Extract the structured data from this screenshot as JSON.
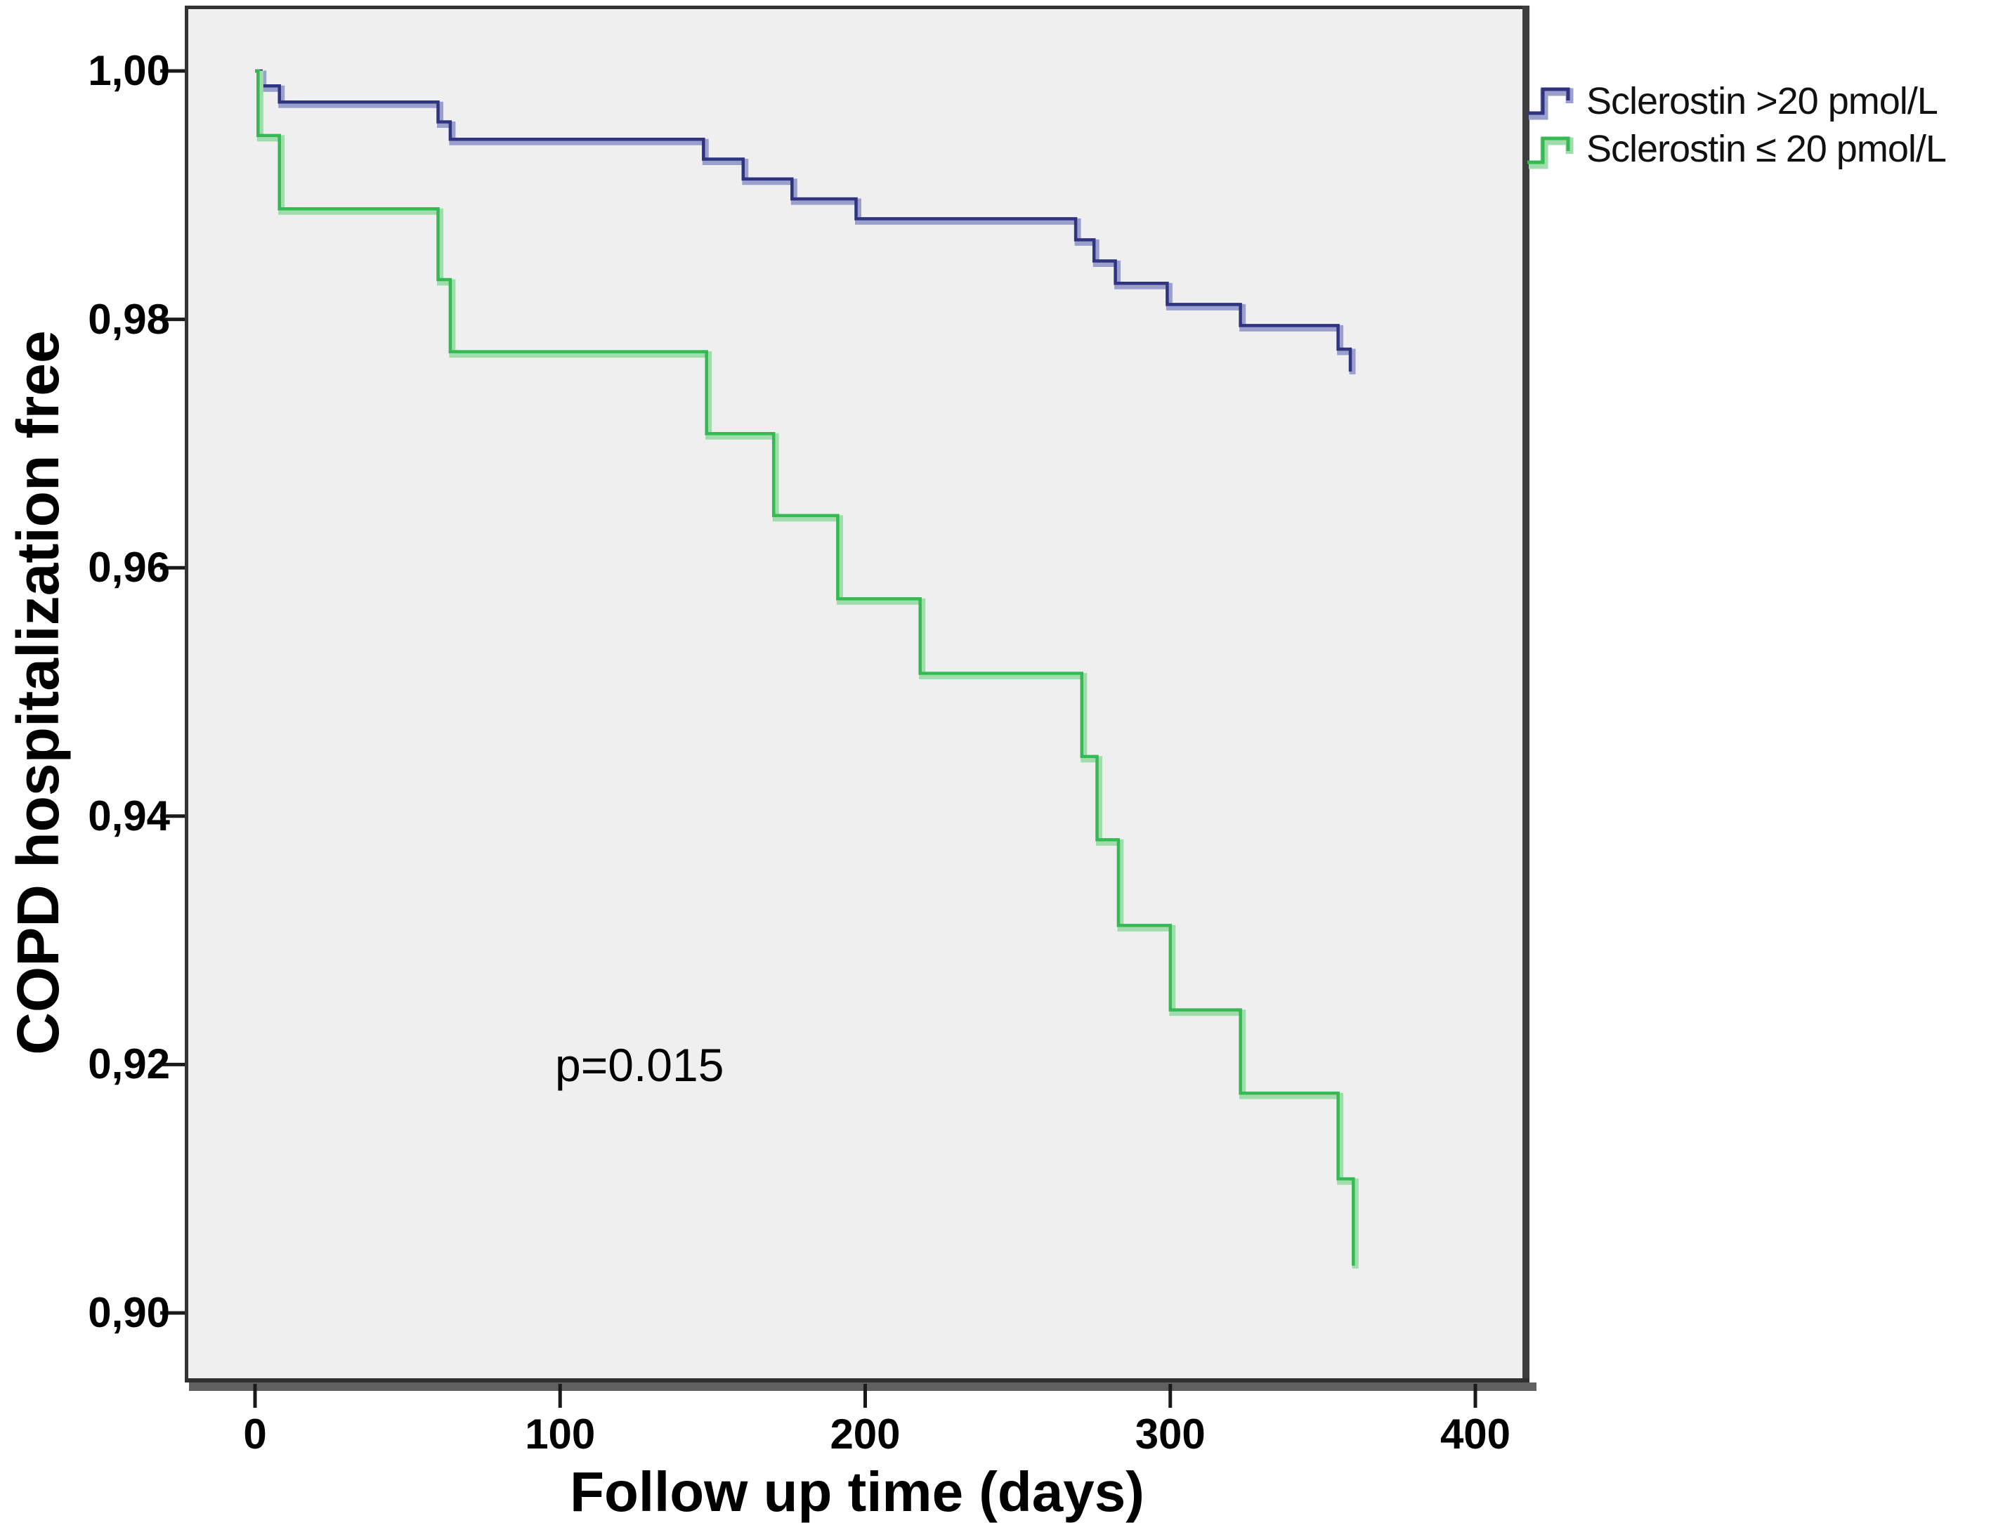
{
  "figure": {
    "p_value_label": "p=0.015",
    "x_axis": {
      "title": "Follow up time (days)",
      "ticks": [
        "0",
        "100",
        "200",
        "300",
        "400"
      ]
    },
    "y_axis": {
      "title": "COPD hospitalization free",
      "ticks": [
        "1,00",
        "0,98",
        "0,96",
        "0,94",
        "0,92",
        "0,90"
      ]
    },
    "legend": {
      "items": [
        {
          "label": "Sclerostin >20 pmol/L",
          "color": "#2f3480",
          "halo": "#9aa0cb"
        },
        {
          "label": "Sclerostin ≤ 20 pmol/L",
          "color": "#35b952",
          "halo": "#a0dcac"
        }
      ]
    },
    "colors": {
      "plot_background": "#efefef",
      "frame_dark": "#333333",
      "frame_shadow": "#606060",
      "tick_color": "#1a1a1a"
    }
  },
  "chart_data": {
    "type": "line",
    "subtype": "kaplan-meier-step",
    "title": "",
    "xlabel": "Follow up time (days)",
    "ylabel": "COPD hospitalization free",
    "xlim": [
      -23,
      417
    ],
    "ylim": [
      0.894,
      1.005
    ],
    "x_ticks": [
      0,
      100,
      200,
      300,
      400
    ],
    "y_ticks": [
      1.0,
      0.98,
      0.96,
      0.94,
      0.92,
      0.9
    ],
    "grid": false,
    "legend_position": "top-right-outside",
    "annotations": [
      {
        "text": "p=0.015",
        "x": 127,
        "y": 0.92
      }
    ],
    "series": [
      {
        "name": "Sclerostin >20 pmol/L",
        "color": "#2f3480",
        "halo": "#9aa0cb",
        "points": [
          [
            0,
            1.0
          ],
          [
            2,
            0.9988
          ],
          [
            8,
            0.9975
          ],
          [
            60,
            0.9959
          ],
          [
            64,
            0.9945
          ],
          [
            147,
            0.9929
          ],
          [
            160,
            0.9913
          ],
          [
            176,
            0.9897
          ],
          [
            197,
            0.9881
          ],
          [
            269,
            0.9864
          ],
          [
            275,
            0.9847
          ],
          [
            282,
            0.9829
          ],
          [
            299,
            0.9812
          ],
          [
            323,
            0.9795
          ],
          [
            355,
            0.9776
          ],
          [
            359,
            0.9758
          ]
        ]
      },
      {
        "name": "Sclerostin ≤ 20 pmol/L",
        "color": "#35b952",
        "halo": "#a0dcac",
        "points": [
          [
            0,
            1.0
          ],
          [
            1,
            0.9948
          ],
          [
            8,
            0.9889
          ],
          [
            60,
            0.9832
          ],
          [
            64,
            0.9774
          ],
          [
            148,
            0.9708
          ],
          [
            170,
            0.9642
          ],
          [
            191,
            0.9575
          ],
          [
            218,
            0.9515
          ],
          [
            271,
            0.9448
          ],
          [
            276,
            0.9381
          ],
          [
            283,
            0.9312
          ],
          [
            300,
            0.9244
          ],
          [
            323,
            0.9177
          ],
          [
            355,
            0.9108
          ],
          [
            360,
            0.9038
          ]
        ]
      }
    ]
  }
}
